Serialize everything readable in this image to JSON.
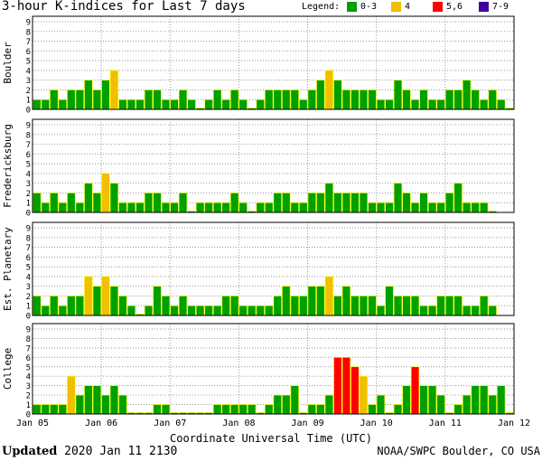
{
  "title": "3-hour K-indices for Last 7 days",
  "legend": {
    "title": "Legend:",
    "items": [
      {
        "label": "0-3",
        "color": "#00a000"
      },
      {
        "label": "4",
        "color": "#f0c000"
      },
      {
        "label": "5,6",
        "color": "#ff0000"
      },
      {
        "label": "7-9",
        "color": "#4000a0"
      }
    ]
  },
  "footer": {
    "updated_label": "Updated",
    "updated_value": "2020 Jan 11 2130",
    "source": "NOAA/SWPC Boulder, CO USA"
  },
  "chart_data": {
    "type": "bar",
    "xlabel": "Coordinate Universal Time (UTC)",
    "x_ticks": [
      "Jan 05",
      "Jan 06",
      "Jan 07",
      "Jan 08",
      "Jan 09",
      "Jan 10",
      "Jan 11",
      "Jan 12"
    ],
    "ylim": [
      0,
      9
    ],
    "y_ticks": [
      0,
      1,
      2,
      3,
      4,
      5,
      6,
      7,
      8,
      9
    ],
    "intervals_per_day": 8,
    "color_scale": [
      {
        "range": [
          0,
          3
        ],
        "color": "#00a000"
      },
      {
        "range": [
          4,
          4
        ],
        "color": "#f0c000"
      },
      {
        "range": [
          5,
          6
        ],
        "color": "#ff0000"
      },
      {
        "range": [
          7,
          9
        ],
        "color": "#4000a0"
      }
    ],
    "panels": [
      {
        "name": "Boulder",
        "values": [
          1,
          1,
          2,
          1,
          2,
          2,
          3,
          2,
          3,
          4,
          1,
          1,
          1,
          2,
          2,
          1,
          1,
          2,
          1,
          0,
          1,
          2,
          1,
          2,
          1,
          0,
          1,
          2,
          2,
          2,
          2,
          1,
          2,
          3,
          4,
          3,
          2,
          2,
          2,
          2,
          1,
          1,
          3,
          2,
          1,
          2,
          1,
          1,
          2,
          2,
          3,
          2,
          1,
          2,
          1,
          0
        ]
      },
      {
        "name": "Fredericksburg",
        "values": [
          2,
          1,
          2,
          1,
          2,
          1,
          3,
          2,
          4,
          3,
          1,
          1,
          1,
          2,
          2,
          1,
          1,
          2,
          0,
          1,
          1,
          1,
          1,
          2,
          1,
          0,
          1,
          1,
          2,
          2,
          1,
          1,
          2,
          2,
          3,
          2,
          2,
          2,
          2,
          1,
          1,
          1,
          3,
          2,
          1,
          2,
          1,
          1,
          2,
          3,
          1,
          1,
          1,
          0
        ]
      },
      {
        "name": "Est. Planetary",
        "values": [
          2,
          1,
          2,
          1,
          2,
          2,
          4,
          3,
          4,
          3,
          2,
          1,
          0,
          1,
          3,
          2,
          1,
          2,
          1,
          1,
          1,
          1,
          2,
          2,
          1,
          1,
          1,
          1,
          2,
          3,
          2,
          2,
          3,
          3,
          4,
          2,
          3,
          2,
          2,
          2,
          1,
          3,
          2,
          2,
          2,
          1,
          1,
          2,
          2,
          2,
          1,
          1,
          2,
          1
        ]
      },
      {
        "name": "College",
        "values": [
          1,
          1,
          1,
          1,
          4,
          2,
          3,
          3,
          2,
          3,
          2,
          0,
          0,
          0,
          1,
          1,
          0,
          0,
          0,
          0,
          0,
          1,
          1,
          1,
          1,
          1,
          0,
          1,
          2,
          2,
          3,
          0,
          1,
          1,
          2,
          6,
          6,
          5,
          4,
          1,
          2,
          0,
          1,
          3,
          5,
          3,
          3,
          2,
          0,
          1,
          2,
          3,
          3,
          2,
          3,
          0
        ]
      }
    ]
  }
}
